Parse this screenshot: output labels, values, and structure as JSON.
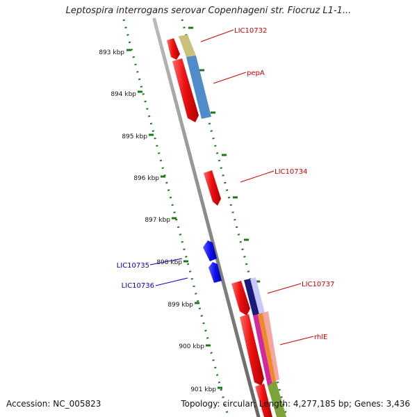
{
  "title": "Leptospira interrogans serovar Copenhageni str. Fiocruz L1-1...",
  "footer": {
    "accession": "Accession: NC_005823",
    "summary": "Topology: circular; Length: 4,277,185 bp; Genes: 3,436"
  },
  "ruler": {
    "ticks": [
      "893 kbp",
      "894 kbp",
      "895 kbp",
      "896 kbp",
      "897 kbp",
      "898 kbp",
      "899 kbp",
      "900 kbp",
      "901 kbp"
    ]
  },
  "gene_labels": {
    "LIC10732": "LIC10732",
    "pepA": "pepA",
    "LIC10734": "LIC10734",
    "LIC10735": "LIC10735",
    "LIC10736": "LIC10736",
    "LIC10737": "LIC10737",
    "rhlE": "rhlE"
  },
  "colors": {
    "forward_gene": "#ee1111",
    "reverse_gene": "#1111ee",
    "backbone": "#888888",
    "tick_green": "#1a7a1a",
    "label_red": "#cc0000",
    "label_blue": "#0000bb"
  }
}
